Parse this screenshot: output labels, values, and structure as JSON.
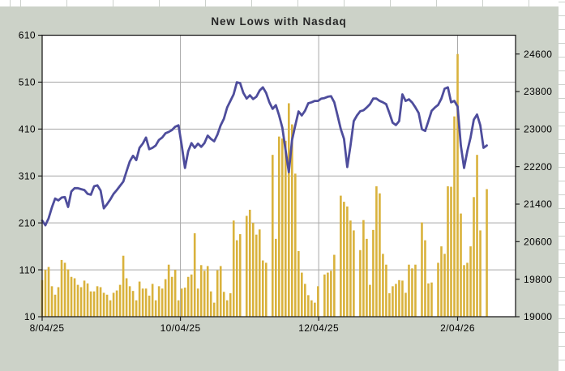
{
  "chart": {
    "title": "New Lows with Nasdaq",
    "colors": {
      "surface": "#ccd2c8",
      "plot_background": "#ffffff",
      "gridline": "#a8a8a8",
      "plot_border": "#202020",
      "bar": "#d9b23c",
      "line": "#4e4d9c",
      "axis_text": "#000000",
      "title_text": "#262626"
    },
    "left_axis": {
      "min": 10,
      "max": 610,
      "major_unit": 100,
      "ticks": [
        610,
        510,
        410,
        310,
        210,
        110,
        10
      ]
    },
    "right_axis": {
      "min": 19000,
      "max": 25000,
      "major_unit": 800,
      "ticks": [
        24600,
        23800,
        23000,
        22200,
        21400,
        20600,
        19800,
        19000
      ]
    },
    "x_axis": {
      "ticks": [
        {
          "label": "8/04/25",
          "day": 0
        },
        {
          "label": "10/04/25",
          "day": 42.6
        },
        {
          "label": "12/04/25",
          "day": 85.2
        },
        {
          "label": "2/04/26",
          "day": 128
        }
      ]
    }
  },
  "chart_data": {
    "type": "combo bar+line, dual axis",
    "x_unit": "daily sessions from 8/04/25 to ~2/18/26",
    "title": "New Lows with Nasdaq",
    "legend_position": "none",
    "grid": "horizontal every 100 (left axis), vertical at date ticks",
    "series": [
      {
        "name": "New Lows",
        "type": "bar",
        "axis": "left",
        "values": [
          88,
          110,
          116,
          75,
          57,
          73,
          131,
          125,
          111,
          95,
          92,
          78,
          73,
          87,
          81,
          64,
          64,
          75,
          73,
          61,
          57,
          45,
          61,
          66,
          78,
          140,
          92,
          75,
          65,
          45,
          85,
          70,
          70,
          55,
          80,
          45,
          75,
          70,
          90,
          121,
          95,
          110,
          45,
          70,
          72,
          95,
          100,
          188,
          70,
          120,
          108,
          118,
          64,
          40,
          109,
          118,
          63,
          45,
          60,
          215,
          173,
          186,
          0,
          225,
          238,
          210,
          185,
          196,
          130,
          125,
          0,
          355,
          176,
          394,
          390,
          385,
          465,
          420,
          315,
          150,
          104,
          80,
          56,
          45,
          40,
          75,
          0,
          100,
          104,
          108,
          142,
          0,
          268,
          255,
          245,
          215,
          194,
          0,
          152,
          216,
          176,
          78,
          195,
          288,
          273,
          144,
          121,
          60,
          75,
          80,
          88,
          87,
          61,
          121,
          113,
          121,
          0,
          211,
          173,
          81,
          83,
          0,
          125,
          160,
          144,
          288,
          287,
          437,
          570,
          230,
          120,
          125,
          160,
          265,
          355,
          194,
          0,
          282
        ]
      },
      {
        "name": "Nasdaq",
        "type": "line",
        "axis": "right",
        "values": [
          21050,
          20950,
          21100,
          21330,
          21520,
          21480,
          21540,
          21550,
          21340,
          21670,
          21740,
          21740,
          21720,
          21700,
          21620,
          21600,
          21780,
          21800,
          21690,
          21310,
          21400,
          21500,
          21620,
          21700,
          21790,
          21880,
          22100,
          22310,
          22430,
          22340,
          22600,
          22690,
          22820,
          22570,
          22600,
          22650,
          22770,
          22820,
          22910,
          22940,
          22980,
          23050,
          23080,
          22650,
          22170,
          22530,
          22700,
          22600,
          22690,
          22620,
          22700,
          22860,
          22790,
          22740,
          22880,
          23080,
          23220,
          23460,
          23600,
          23740,
          23996,
          23980,
          23770,
          23650,
          23720,
          23640,
          23690,
          23820,
          23890,
          23770,
          23570,
          23430,
          23510,
          23290,
          23030,
          22550,
          22080,
          22770,
          23080,
          23376,
          23290,
          23390,
          23550,
          23570,
          23600,
          23600,
          23650,
          23660,
          23690,
          23700,
          23570,
          23290,
          23000,
          22790,
          22190,
          22650,
          23170,
          23290,
          23380,
          23400,
          23460,
          23530,
          23650,
          23650,
          23600,
          23570,
          23530,
          23340,
          23135,
          23085,
          23170,
          23740,
          23600,
          23635,
          23565,
          23460,
          23340,
          22997,
          22960,
          23170,
          23390,
          23460,
          23515,
          23650,
          23860,
          23890,
          23570,
          23600,
          23480,
          22650,
          22170,
          22530,
          22820,
          23200,
          23310,
          23080,
          22600,
          22650
        ]
      }
    ]
  }
}
